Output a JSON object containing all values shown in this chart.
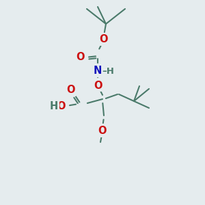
{
  "background_color": "#e5ecee",
  "bond_color": "#4a7a6a",
  "bond_width": 1.5,
  "atom_colors": {
    "O": "#cc1111",
    "N": "#1111bb",
    "C": "#4a7a6a",
    "H": "#4a7a6a"
  },
  "font_size": 10.5,
  "figsize": [
    3.0,
    3.0
  ],
  "dpi": 100
}
